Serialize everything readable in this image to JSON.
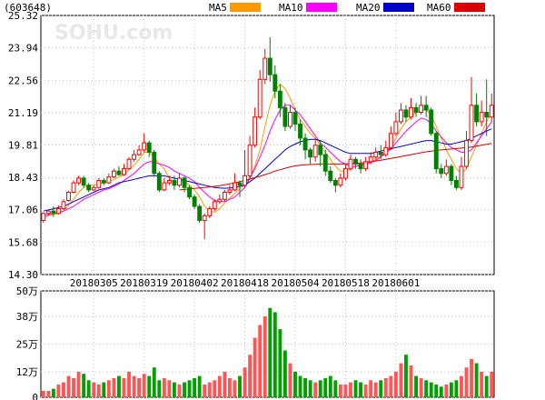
{
  "chart_data": [
    {
      "type": "candlestick",
      "title": "(603648)",
      "watermark": "SOHU.com",
      "ylim": [
        14.3,
        25.32
      ],
      "y_ticks": [
        "25.32",
        "23.94",
        "22.56",
        "21.19",
        "19.81",
        "18.43",
        "17.06",
        "15.68",
        "14.30"
      ],
      "x_tick_labels": [
        "20180305",
        "20180319",
        "20180402",
        "20180418",
        "20180504",
        "20180518",
        "20180601"
      ],
      "x_tick_index": [
        10,
        20,
        30,
        40,
        50,
        60,
        70
      ],
      "up_color": "#ff0000",
      "down_color": "#008000",
      "legend": [
        {
          "name": "MA5",
          "color": "#ff9900"
        },
        {
          "name": "MA10",
          "color": "#ff00ff"
        },
        {
          "name": "MA20",
          "color": "#0000cc"
        },
        {
          "name": "MA60",
          "color": "#dd0000"
        }
      ],
      "candles": [
        [
          16.6,
          16.9,
          16.5,
          16.95
        ],
        [
          16.9,
          17.0,
          16.8,
          17.05
        ],
        [
          17.0,
          16.9,
          16.75,
          17.2
        ],
        [
          16.9,
          17.1,
          16.85,
          17.25
        ],
        [
          17.1,
          17.4,
          17.05,
          17.5
        ],
        [
          17.45,
          17.8,
          17.4,
          17.85
        ],
        [
          17.8,
          18.2,
          17.75,
          18.3
        ],
        [
          18.2,
          18.4,
          18.1,
          18.5
        ],
        [
          18.4,
          18.1,
          18.0,
          18.5
        ],
        [
          18.1,
          17.9,
          17.8,
          18.2
        ],
        [
          17.9,
          18.0,
          17.85,
          18.1
        ],
        [
          18.0,
          18.3,
          17.95,
          18.4
        ],
        [
          18.3,
          18.2,
          18.1,
          18.4
        ],
        [
          18.2,
          18.45,
          18.15,
          18.6
        ],
        [
          18.45,
          18.7,
          18.4,
          18.8
        ],
        [
          18.7,
          18.55,
          18.5,
          18.9
        ],
        [
          18.55,
          18.8,
          18.5,
          19.0
        ],
        [
          18.8,
          19.2,
          18.75,
          19.3
        ],
        [
          19.2,
          19.4,
          19.1,
          19.6
        ],
        [
          19.4,
          19.6,
          19.35,
          19.8
        ],
        [
          19.6,
          19.9,
          19.5,
          20.3
        ],
        [
          19.9,
          19.5,
          19.3,
          20.0
        ],
        [
          19.5,
          18.6,
          18.5,
          19.6
        ],
        [
          18.6,
          17.9,
          17.8,
          18.7
        ],
        [
          17.9,
          18.2,
          17.85,
          18.4
        ],
        [
          18.2,
          18.3,
          18.1,
          18.5
        ],
        [
          18.3,
          18.1,
          17.9,
          18.5
        ],
        [
          18.1,
          18.4,
          18.0,
          18.6
        ],
        [
          18.4,
          18.0,
          17.8,
          18.5
        ],
        [
          18.0,
          17.6,
          17.5,
          18.1
        ],
        [
          17.6,
          17.2,
          17.1,
          17.7
        ],
        [
          17.2,
          16.6,
          16.5,
          17.3
        ],
        [
          16.6,
          16.8,
          15.8,
          16.9
        ],
        [
          16.8,
          17.1,
          16.7,
          17.2
        ],
        [
          17.1,
          17.4,
          17.0,
          17.5
        ],
        [
          17.4,
          17.5,
          17.3,
          17.7
        ],
        [
          17.5,
          17.8,
          17.4,
          17.9
        ],
        [
          17.8,
          17.9,
          17.7,
          18.1
        ],
        [
          17.9,
          18.2,
          17.85,
          18.6
        ],
        [
          18.2,
          18.1,
          17.6,
          18.3
        ],
        [
          18.1,
          18.5,
          18.0,
          19.6
        ],
        [
          18.5,
          19.8,
          18.4,
          20.2
        ],
        [
          19.8,
          21.0,
          19.7,
          21.4
        ],
        [
          21.0,
          22.6,
          20.9,
          23.0
        ],
        [
          22.6,
          23.5,
          22.4,
          23.9
        ],
        [
          23.5,
          22.8,
          22.5,
          24.4
        ],
        [
          22.8,
          22.1,
          21.8,
          23.2
        ],
        [
          22.1,
          21.4,
          21.0,
          22.4
        ],
        [
          21.4,
          20.6,
          20.4,
          21.6
        ],
        [
          20.6,
          21.2,
          20.5,
          21.5
        ],
        [
          21.2,
          20.7,
          20.4,
          21.4
        ],
        [
          20.7,
          20.1,
          19.8,
          20.9
        ],
        [
          20.1,
          19.6,
          19.2,
          20.3
        ],
        [
          19.6,
          19.3,
          19.0,
          19.7
        ],
        [
          19.3,
          19.8,
          19.1,
          20.1
        ],
        [
          19.8,
          19.4,
          18.9,
          20.0
        ],
        [
          19.4,
          18.7,
          18.5,
          19.6
        ],
        [
          18.7,
          18.3,
          18.2,
          18.9
        ],
        [
          18.3,
          18.1,
          17.8,
          18.4
        ],
        [
          18.1,
          18.4,
          18.0,
          18.6
        ],
        [
          18.4,
          18.8,
          18.3,
          19.0
        ],
        [
          18.8,
          19.2,
          18.7,
          19.4
        ],
        [
          19.2,
          19.0,
          18.8,
          19.3
        ],
        [
          19.0,
          18.8,
          18.6,
          19.2
        ],
        [
          18.8,
          19.1,
          18.7,
          19.3
        ],
        [
          19.1,
          19.3,
          19.0,
          19.5
        ],
        [
          19.3,
          19.5,
          19.2,
          19.7
        ],
        [
          19.5,
          19.4,
          19.2,
          19.8
        ],
        [
          19.4,
          19.7,
          19.3,
          20.0
        ],
        [
          19.7,
          20.3,
          19.6,
          20.6
        ],
        [
          20.3,
          20.8,
          20.2,
          21.2
        ],
        [
          20.8,
          21.3,
          20.7,
          21.6
        ],
        [
          21.3,
          21.0,
          20.8,
          21.5
        ],
        [
          21.0,
          21.4,
          20.9,
          21.8
        ],
        [
          21.4,
          21.2,
          21.0,
          21.6
        ],
        [
          21.2,
          21.5,
          21.1,
          21.9
        ],
        [
          21.5,
          21.3,
          21.0,
          21.9
        ],
        [
          21.3,
          20.3,
          20.2,
          21.4
        ],
        [
          20.3,
          18.8,
          18.6,
          20.4
        ],
        [
          18.8,
          18.6,
          18.4,
          19.0
        ],
        [
          18.6,
          18.9,
          18.5,
          19.2
        ],
        [
          18.9,
          18.3,
          18.1,
          19.0
        ],
        [
          18.3,
          18.0,
          17.9,
          18.5
        ],
        [
          18.0,
          18.9,
          17.9,
          19.3
        ],
        [
          18.9,
          20.0,
          18.8,
          20.4
        ],
        [
          20.0,
          21.5,
          19.9,
          22.7
        ],
        [
          21.5,
          20.8,
          20.6,
          22.0
        ],
        [
          20.8,
          21.2,
          20.6,
          21.7
        ],
        [
          21.2,
          21.0,
          20.2,
          22.6
        ],
        [
          21.0,
          21.5,
          20.8,
          22.0
        ]
      ],
      "ma5": [
        16.7,
        16.8,
        16.85,
        16.9,
        17.0,
        17.25,
        17.5,
        17.8,
        18.0,
        18.1,
        18.1,
        18.15,
        18.2,
        18.25,
        18.35,
        18.45,
        18.55,
        18.75,
        18.95,
        19.2,
        19.5,
        19.5,
        19.3,
        19.0,
        18.8,
        18.4,
        18.2,
        18.25,
        18.3,
        18.1,
        17.9,
        17.6,
        17.2,
        17.0,
        16.95,
        17.1,
        17.35,
        17.55,
        17.75,
        17.95,
        18.1,
        18.45,
        18.9,
        19.6,
        20.6,
        21.5,
        22.1,
        22.4,
        22.2,
        21.8,
        21.3,
        20.9,
        20.6,
        20.3,
        20.1,
        19.8,
        19.5,
        19.2,
        18.9,
        18.7,
        18.7,
        18.8,
        18.9,
        19.0,
        19.05,
        19.1,
        19.2,
        19.35,
        19.5,
        19.75,
        20.1,
        20.5,
        20.8,
        21.0,
        21.2,
        21.3,
        21.3,
        21.1,
        20.6,
        20.1,
        19.6,
        19.2,
        18.8,
        18.6,
        18.8,
        19.3,
        19.8,
        20.3,
        20.8,
        21.2
      ],
      "ma10": [
        16.8,
        16.85,
        16.9,
        16.95,
        17.0,
        17.1,
        17.2,
        17.35,
        17.5,
        17.6,
        17.7,
        17.8,
        17.9,
        17.95,
        18.05,
        18.15,
        18.3,
        18.45,
        18.6,
        18.8,
        19.0,
        19.1,
        19.1,
        19.0,
        18.95,
        18.85,
        18.7,
        18.6,
        18.5,
        18.4,
        18.25,
        18.0,
        17.8,
        17.6,
        17.45,
        17.4,
        17.4,
        17.5,
        17.6,
        17.8,
        18.0,
        18.4,
        18.8,
        19.3,
        19.8,
        20.4,
        20.9,
        21.3,
        21.5,
        21.5,
        21.3,
        21.1,
        20.8,
        20.5,
        20.2,
        19.9,
        19.7,
        19.5,
        19.3,
        19.1,
        19.0,
        18.9,
        18.9,
        18.95,
        19.0,
        19.05,
        19.15,
        19.3,
        19.45,
        19.65,
        19.9,
        20.15,
        20.4,
        20.6,
        20.8,
        20.95,
        20.9,
        20.7,
        20.4,
        20.15,
        19.9,
        19.7,
        19.6,
        19.5,
        19.5,
        19.6,
        19.9,
        20.2,
        20.5,
        20.8
      ],
      "ma20": [
        17.0,
        17.05,
        17.1,
        17.15,
        17.2,
        17.3,
        17.4,
        17.5,
        17.6,
        17.7,
        17.8,
        17.9,
        17.95,
        18.0,
        18.1,
        18.2,
        18.25,
        18.3,
        18.35,
        18.4,
        18.45,
        18.5,
        18.5,
        18.5,
        18.5,
        18.45,
        18.4,
        18.35,
        18.3,
        18.25,
        18.2,
        18.15,
        18.1,
        18.05,
        18.0,
        17.98,
        17.97,
        17.98,
        18.0,
        18.05,
        18.1,
        18.25,
        18.4,
        18.6,
        18.8,
        19.0,
        19.2,
        19.4,
        19.6,
        19.75,
        19.85,
        19.95,
        20.0,
        20.05,
        20.05,
        20.0,
        19.9,
        19.8,
        19.7,
        19.6,
        19.5,
        19.45,
        19.45,
        19.45,
        19.45,
        19.45,
        19.5,
        19.55,
        19.6,
        19.65,
        19.7,
        19.75,
        19.8,
        19.85,
        19.9,
        19.95,
        20.0,
        20.0,
        19.95,
        19.9,
        19.85,
        19.85,
        19.9,
        19.95,
        20.0,
        20.1,
        20.2,
        20.3,
        20.4,
        20.5
      ],
      "ma60": [
        null,
        null,
        null,
        null,
        null,
        null,
        null,
        null,
        null,
        null,
        null,
        null,
        null,
        null,
        null,
        null,
        null,
        null,
        null,
        null,
        null,
        null,
        null,
        null,
        null,
        null,
        null,
        17.9,
        17.92,
        17.94,
        17.96,
        17.98,
        18.0,
        18.02,
        18.05,
        18.08,
        18.12,
        18.16,
        18.2,
        18.25,
        18.3,
        18.36,
        18.42,
        18.48,
        18.55,
        18.62,
        18.7,
        18.76,
        18.82,
        18.88,
        18.92,
        18.95,
        18.97,
        18.98,
        18.99,
        19.0,
        19.0,
        19.0,
        19.0,
        19.0,
        19.01,
        19.02,
        19.03,
        19.05,
        19.07,
        19.1,
        19.13,
        19.16,
        19.2,
        19.24,
        19.28,
        19.32,
        19.36,
        19.4,
        19.44,
        19.48,
        19.52,
        19.55,
        19.58,
        19.6,
        19.62,
        19.64,
        19.66,
        19.68,
        19.7,
        19.72,
        19.76,
        19.8,
        19.84,
        19.88
      ]
    },
    {
      "type": "bar",
      "title": "volume",
      "ylim": [
        0,
        50
      ],
      "y_ticks": [
        "50万",
        "38万",
        "25万",
        "12万",
        "0"
      ],
      "tick_values": [
        50,
        38,
        25,
        12,
        0
      ],
      "values": [
        3,
        3,
        4,
        6,
        7,
        10,
        9,
        12,
        11,
        8,
        7,
        6,
        7,
        8,
        9,
        10,
        9,
        12,
        10,
        9,
        11,
        10,
        14,
        8,
        9,
        8,
        7,
        6,
        7,
        8,
        9,
        10,
        6,
        7,
        8,
        10,
        12,
        9,
        8,
        10,
        14,
        20,
        28,
        34,
        38,
        42,
        40,
        32,
        22,
        16,
        12,
        10,
        9,
        8,
        7,
        8,
        9,
        10,
        8,
        6,
        6,
        7,
        8,
        7,
        6,
        8,
        7,
        8,
        9,
        10,
        12,
        16,
        20,
        15,
        10,
        9,
        8,
        7,
        6,
        5,
        6,
        7,
        8,
        10,
        14,
        18,
        16,
        12,
        10,
        12
      ]
    }
  ]
}
